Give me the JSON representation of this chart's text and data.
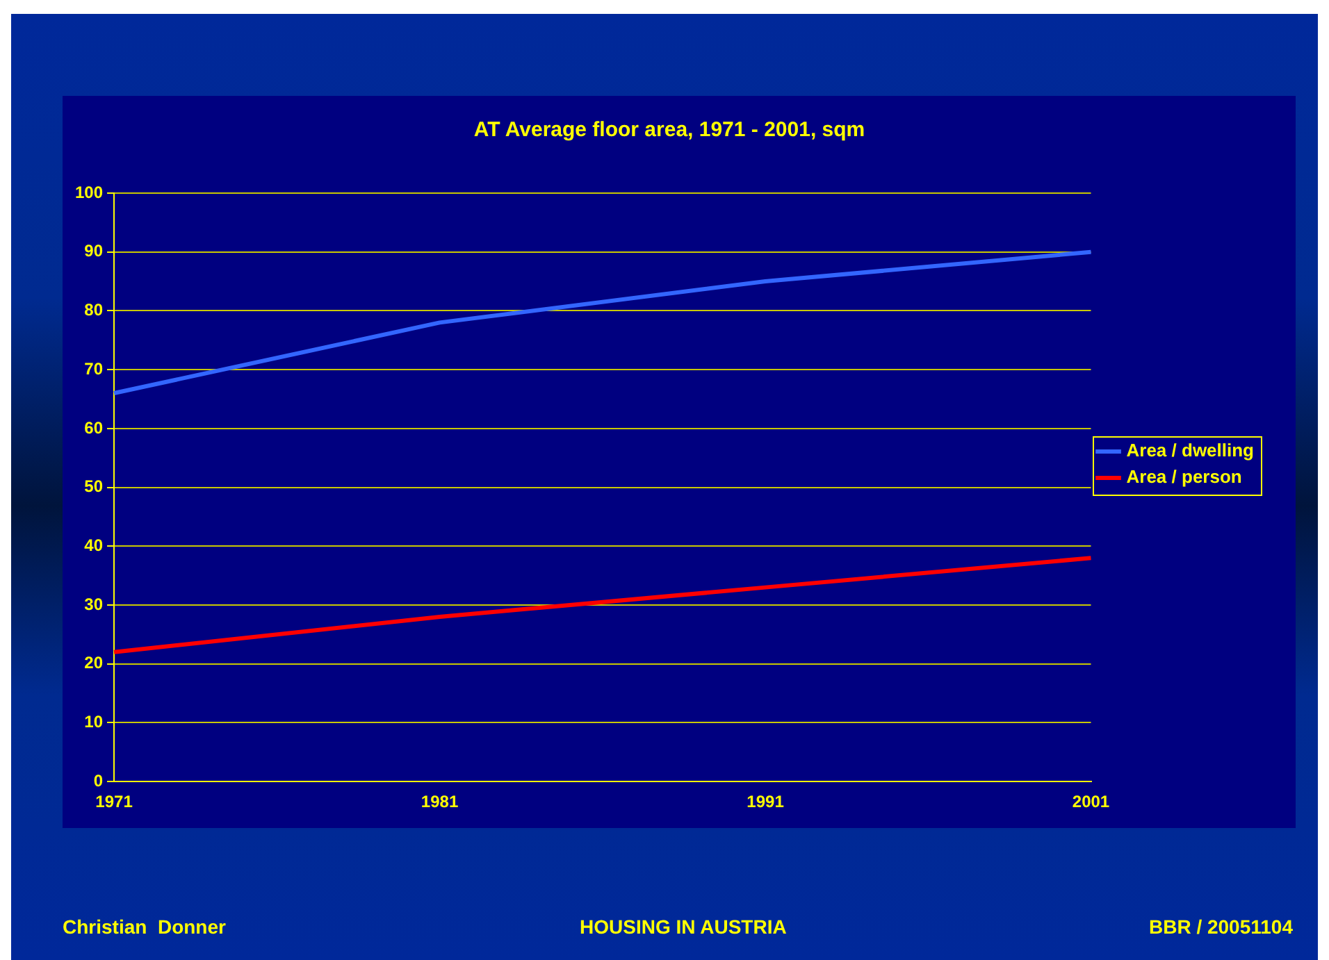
{
  "chart_data": {
    "type": "line",
    "title": "AT Average floor area, 1971 - 2001, sqm",
    "categories": [
      "1971",
      "1981",
      "1991",
      "2001"
    ],
    "series": [
      {
        "name": "Area / dwelling",
        "color": "#3366ff",
        "values": [
          66,
          78,
          85,
          90
        ]
      },
      {
        "name": "Area / person",
        "color": "#ff0000",
        "values": [
          22,
          28,
          33,
          38
        ]
      }
    ],
    "ylim": [
      0,
      100
    ],
    "yticks": [
      0,
      10,
      20,
      30,
      40,
      50,
      60,
      70,
      80,
      90,
      100
    ],
    "grid": "y",
    "legend": "right",
    "marker": "none",
    "line_style": "solid",
    "annotations": [
      "Christian  Donner",
      "HOUSING IN AUSTRIA",
      "BBR / 20051104"
    ]
  }
}
